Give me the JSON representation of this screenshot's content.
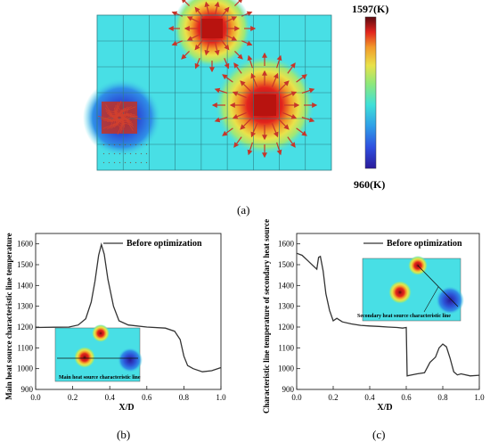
{
  "figure": {
    "label_a": "(a)",
    "label_b": "(b)",
    "label_c": "(c)"
  },
  "panel_a": {
    "colorbar_max": "1597(K)",
    "colorbar_min": "960(K)",
    "colors": [
      "#2a1a9a",
      "#2f7fe6",
      "#2ad0e6",
      "#6be8a0",
      "#e9e24a",
      "#f29a2a",
      "#e2241d",
      "#5a0a10"
    ],
    "background_color": "#48dfe5",
    "arrow_color": "#c6362a"
  },
  "chart_data": [
    {
      "type": "line",
      "title": "",
      "xlabel": "X/D",
      "ylabel": "Main heat source characteristic line temperature",
      "xlim": [
        0.0,
        1.0
      ],
      "ylim": [
        900,
        1650
      ],
      "xticks": [
        "0.0",
        "0.2",
        "0.4",
        "0.6",
        "0.8",
        "1.0"
      ],
      "yticks": [
        "900",
        "1000",
        "1100",
        "1200",
        "1300",
        "1400",
        "1500",
        "1600"
      ],
      "legend": "top-right",
      "inset_label": "Main heat source characteristic line",
      "series": [
        {
          "name": "Before optimization",
          "x": [
            0.0,
            0.1,
            0.18,
            0.23,
            0.27,
            0.3,
            0.32,
            0.34,
            0.355,
            0.37,
            0.39,
            0.42,
            0.45,
            0.5,
            0.6,
            0.7,
            0.75,
            0.78,
            0.8,
            0.82,
            0.85,
            0.9,
            0.95,
            1.0
          ],
          "y": [
            1198,
            1199,
            1200,
            1210,
            1240,
            1320,
            1420,
            1545,
            1597,
            1550,
            1430,
            1300,
            1230,
            1210,
            1200,
            1195,
            1180,
            1140,
            1060,
            1015,
            1000,
            985,
            990,
            1005
          ]
        }
      ]
    },
    {
      "type": "line",
      "title": "",
      "xlabel": "X/D",
      "ylabel": "Characteristic line temperature of secondary heat source",
      "xlim": [
        0.0,
        1.0
      ],
      "ylim": [
        900,
        1650
      ],
      "xticks": [
        "0.0",
        "0.2",
        "0.4",
        "0.6",
        "0.8",
        "1.0"
      ],
      "yticks": [
        "900",
        "1000",
        "1100",
        "1200",
        "1300",
        "1400",
        "1500",
        "1600"
      ],
      "legend": "top-right",
      "inset_label": "Secondary heat source characteristic line",
      "series": [
        {
          "name": "Before optimization",
          "x": [
            0.0,
            0.03,
            0.06,
            0.09,
            0.11,
            0.12,
            0.13,
            0.145,
            0.16,
            0.18,
            0.2,
            0.22,
            0.25,
            0.3,
            0.35,
            0.4,
            0.45,
            0.5,
            0.55,
            0.58,
            0.6,
            0.605,
            0.62,
            0.66,
            0.7,
            0.73,
            0.76,
            0.78,
            0.8,
            0.82,
            0.84,
            0.86,
            0.88,
            0.9,
            0.95,
            1.0
          ],
          "y": [
            1555,
            1545,
            1520,
            1495,
            1478,
            1535,
            1540,
            1470,
            1360,
            1280,
            1230,
            1242,
            1225,
            1215,
            1208,
            1205,
            1203,
            1200,
            1198,
            1195,
            1198,
            965,
            968,
            975,
            980,
            1030,
            1055,
            1100,
            1118,
            1105,
            1050,
            985,
            970,
            975,
            965,
            968
          ]
        }
      ]
    }
  ]
}
